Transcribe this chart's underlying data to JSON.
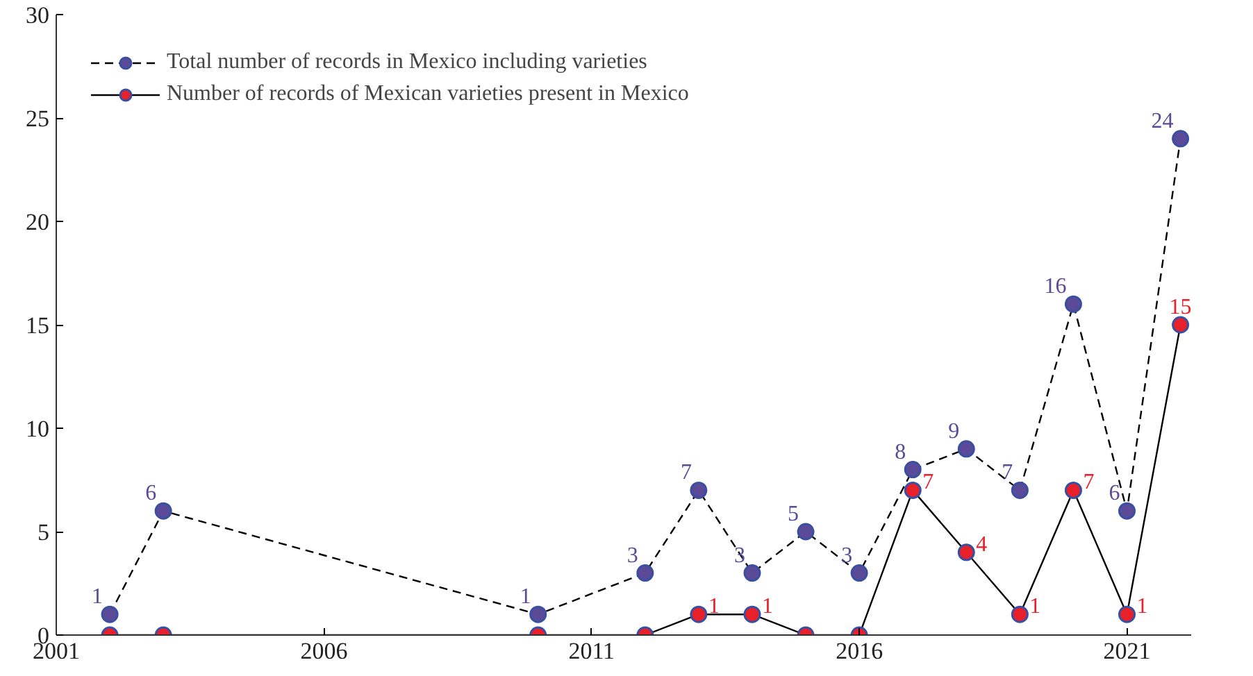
{
  "chart_data": {
    "type": "line",
    "x": [
      2002,
      2003,
      2010,
      2012,
      2013,
      2014,
      2015,
      2016,
      2017,
      2018,
      2019,
      2020,
      2021,
      2022
    ],
    "series": [
      {
        "name": "Total number of records in Mexico including varieties",
        "color": "#5a4a98",
        "line_style": "dashed",
        "values": [
          1,
          6,
          1,
          3,
          7,
          3,
          5,
          3,
          8,
          9,
          7,
          16,
          6,
          24
        ],
        "value_labels": [
          "1",
          "6",
          "1",
          "3",
          "7",
          "3",
          "5",
          "3",
          "8",
          "9",
          "7",
          "16",
          "6",
          "24"
        ]
      },
      {
        "name": "Number of records of Mexican varieties present in Mexico",
        "color": "#e8202a",
        "line_style": "solid",
        "values": [
          0,
          0,
          0,
          0,
          1,
          1,
          0,
          0,
          7,
          4,
          1,
          7,
          1,
          15
        ],
        "value_labels": [
          null,
          null,
          null,
          null,
          "1",
          "1",
          null,
          null,
          "7",
          "4",
          "1",
          "7",
          "1",
          "15"
        ]
      }
    ],
    "xlim": [
      2001,
      2022.2
    ],
    "xticks": [
      2001,
      2006,
      2011,
      2016,
      2021
    ],
    "ylim": [
      0,
      30
    ],
    "yticks": [
      0,
      5,
      10,
      15,
      20,
      25,
      30
    ],
    "marker": "circle",
    "grid": false,
    "legend": "top left"
  }
}
